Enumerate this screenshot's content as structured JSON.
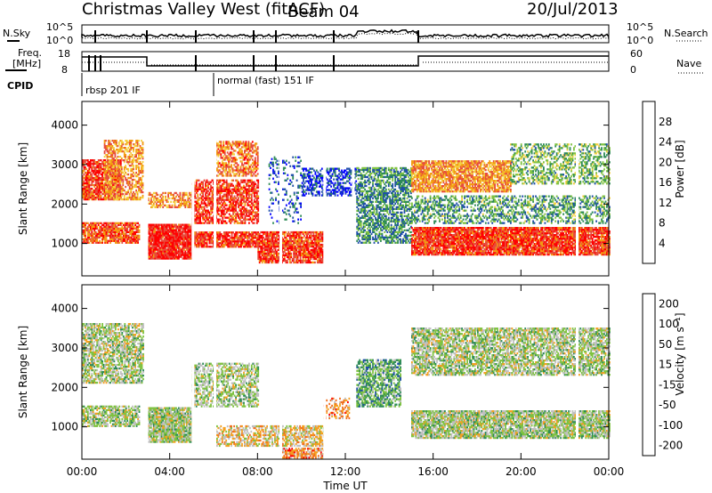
{
  "header": {
    "title": "Christmas Valley West (fitACF)",
    "beam": "Beam 04",
    "date": "20/Jul/2013"
  },
  "summary": {
    "nsky_label": "N.Sky",
    "nsearch_label": "N.Search",
    "noise_ticks_left": [
      "10^5",
      "10^0"
    ],
    "noise_ticks_right": [
      "10^5",
      "10^0"
    ],
    "freq_label_1": "Freq.",
    "freq_label_2": "[MHz]",
    "freq_ticks": [
      "18",
      "8"
    ],
    "nave_label": "Nave",
    "nave_ticks": [
      "60",
      "0"
    ],
    "cpid_label": "CPID",
    "cpid_entries": [
      {
        "label": "rbsp 201 IF",
        "start_hour": 0.0
      },
      {
        "label": "normal (fast) 151 IF",
        "start_hour": 6.0
      }
    ]
  },
  "chart_data": [
    {
      "type": "heatmap",
      "name": "power-panel",
      "title": "",
      "xlabel": "",
      "ylabel": "Slant Range [km]",
      "xlim": [
        0,
        24
      ],
      "ylim": [
        180,
        4600
      ],
      "yticks": [
        1000,
        2000,
        3000,
        4000
      ],
      "colorbar_label": "Power [dB]",
      "colorbar_ticks": [
        "4",
        "8",
        "12",
        "16",
        "20",
        "24",
        "28"
      ],
      "colorbar_range": [
        0,
        32
      ],
      "colors": [
        "#0000ff",
        "#1f4fa8",
        "#2e8b57",
        "#7fc241",
        "#f4d03f",
        "#f39c12",
        "#e74c3c",
        "#ff0000"
      ],
      "bands": [
        {
          "t0": 0.0,
          "t1": 1.8,
          "r0": 2100,
          "r1": 3100,
          "level": 0.85,
          "density": 0.8
        },
        {
          "t0": 0.0,
          "t1": 2.6,
          "r0": 1000,
          "r1": 1500,
          "level": 0.8,
          "density": 0.8
        },
        {
          "t0": 1.0,
          "t1": 2.8,
          "r0": 2100,
          "r1": 3600,
          "level": 0.7,
          "density": 0.6
        },
        {
          "t0": 3.0,
          "t1": 5.0,
          "r0": 600,
          "r1": 1500,
          "level": 0.9,
          "density": 0.95
        },
        {
          "t0": 3.0,
          "t1": 5.0,
          "r0": 1900,
          "r1": 2300,
          "level": 0.7,
          "density": 0.6
        },
        {
          "t0": 5.0,
          "t1": 8.0,
          "r0": 1500,
          "r1": 2600,
          "level": 0.85,
          "density": 0.7
        },
        {
          "t0": 5.0,
          "t1": 8.0,
          "r0": 900,
          "r1": 1300,
          "level": 0.85,
          "density": 0.85
        },
        {
          "t0": 6.0,
          "t1": 8.0,
          "r0": 2700,
          "r1": 3600,
          "level": 0.75,
          "density": 0.6
        },
        {
          "t0": 8.0,
          "t1": 11.0,
          "r0": 500,
          "r1": 1300,
          "level": 0.85,
          "density": 0.85
        },
        {
          "t0": 8.5,
          "t1": 10.0,
          "r0": 1500,
          "r1": 3200,
          "level": 0.2,
          "density": 0.2
        },
        {
          "t0": 10.0,
          "t1": 12.5,
          "r0": 2200,
          "r1": 2900,
          "level": 0.15,
          "density": 0.5
        },
        {
          "t0": 12.5,
          "t1": 15.0,
          "r0": 1000,
          "r1": 2900,
          "level": 0.3,
          "density": 0.6
        },
        {
          "t0": 15.0,
          "t1": 24.0,
          "r0": 700,
          "r1": 1400,
          "level": 0.85,
          "density": 0.9
        },
        {
          "t0": 15.0,
          "t1": 19.5,
          "r0": 2300,
          "r1": 3100,
          "level": 0.7,
          "density": 0.8
        },
        {
          "t0": 15.0,
          "t1": 24.0,
          "r0": 1500,
          "r1": 2200,
          "level": 0.35,
          "density": 0.45
        },
        {
          "t0": 19.5,
          "t1": 24.0,
          "r0": 2500,
          "r1": 3500,
          "level": 0.4,
          "density": 0.45
        }
      ]
    },
    {
      "type": "heatmap",
      "name": "velocity-panel",
      "title": "",
      "xlabel": "Time UT",
      "ylabel": "Slant Range [km]",
      "xlim": [
        0,
        24
      ],
      "ylim": [
        180,
        4600
      ],
      "yticks": [
        1000,
        2000,
        3000,
        4000
      ],
      "xticks": [
        "00:00",
        "04:00",
        "08:00",
        "12:00",
        "16:00",
        "20:00",
        "00:00"
      ],
      "colorbar_label": "Velocity [m s⁻¹]",
      "colorbar_ticks": [
        "200",
        "100",
        "50",
        "15",
        "-15",
        "-50",
        "-100",
        "-200"
      ],
      "colors": [
        "#0000ff",
        "#1f4fa8",
        "#2e8b57",
        "#7fc241",
        "#c0c0c0",
        "#f4a020",
        "#f07020",
        "#ff0000"
      ],
      "bands": [
        {
          "t0": 0.0,
          "t1": 2.8,
          "r0": 2100,
          "r1": 3600,
          "level": 0.5,
          "density": 0.7
        },
        {
          "t0": 0.0,
          "t1": 2.6,
          "r0": 1000,
          "r1": 1500,
          "level": 0.5,
          "density": 0.7
        },
        {
          "t0": 3.0,
          "t1": 5.0,
          "r0": 600,
          "r1": 1500,
          "level": 0.5,
          "density": 0.9
        },
        {
          "t0": 5.0,
          "t1": 8.0,
          "r0": 1500,
          "r1": 2600,
          "level": 0.5,
          "density": 0.6
        },
        {
          "t0": 6.0,
          "t1": 11.0,
          "r0": 500,
          "r1": 1000,
          "level": 0.62,
          "density": 0.6
        },
        {
          "t0": 9.0,
          "t1": 11.0,
          "r0": 200,
          "r1": 450,
          "level": 0.75,
          "density": 0.7
        },
        {
          "t0": 11.0,
          "t1": 12.2,
          "r0": 1200,
          "r1": 1700,
          "level": 0.75,
          "density": 0.4
        },
        {
          "t0": 12.5,
          "t1": 14.5,
          "r0": 1500,
          "r1": 2700,
          "level": 0.38,
          "density": 0.7
        },
        {
          "t0": 15.0,
          "t1": 24.0,
          "r0": 700,
          "r1": 1400,
          "level": 0.5,
          "density": 0.85
        },
        {
          "t0": 15.0,
          "t1": 24.0,
          "r0": 2300,
          "r1": 3500,
          "level": 0.5,
          "density": 0.7
        }
      ]
    }
  ]
}
